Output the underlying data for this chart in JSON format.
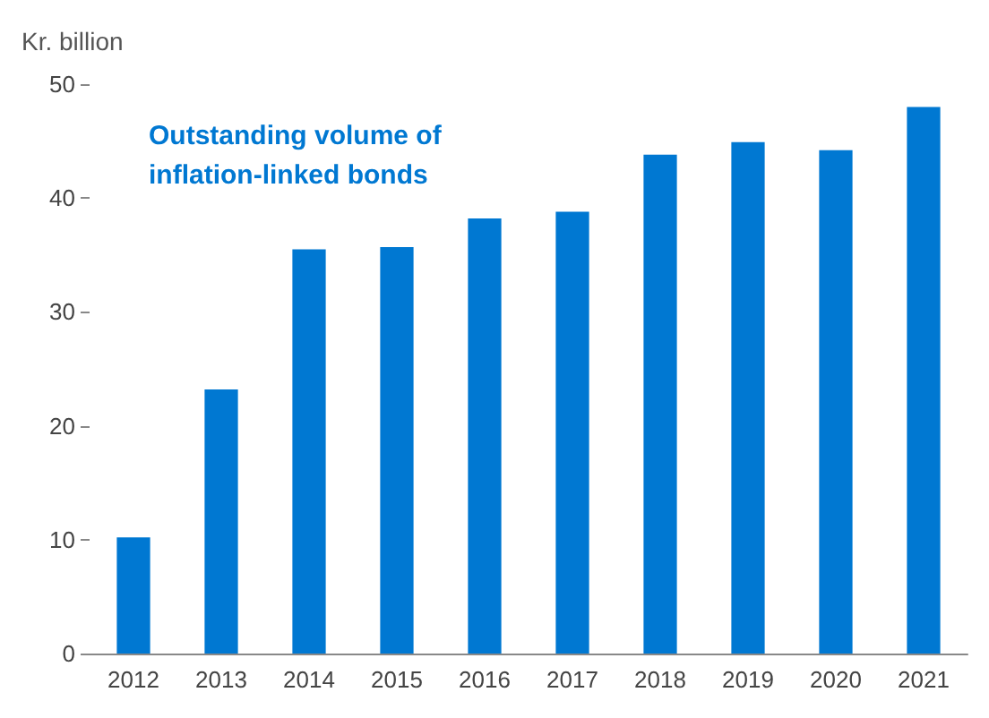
{
  "chart_data": {
    "type": "bar",
    "title": "Outstanding volume of inflation-linked bonds",
    "ylabel": "Kr. billion",
    "categories": [
      "2012",
      "2013",
      "2014",
      "2015",
      "2016",
      "2017",
      "2018",
      "2019",
      "2020",
      "2021"
    ],
    "values": [
      10.2,
      23.2,
      35.5,
      35.7,
      38.2,
      38.8,
      43.8,
      44.9,
      44.2,
      48.0
    ],
    "color": "#0078d2",
    "ylim": [
      0,
      50
    ],
    "yticks": [
      0,
      10,
      20,
      30,
      40,
      50
    ],
    "grid": false
  }
}
